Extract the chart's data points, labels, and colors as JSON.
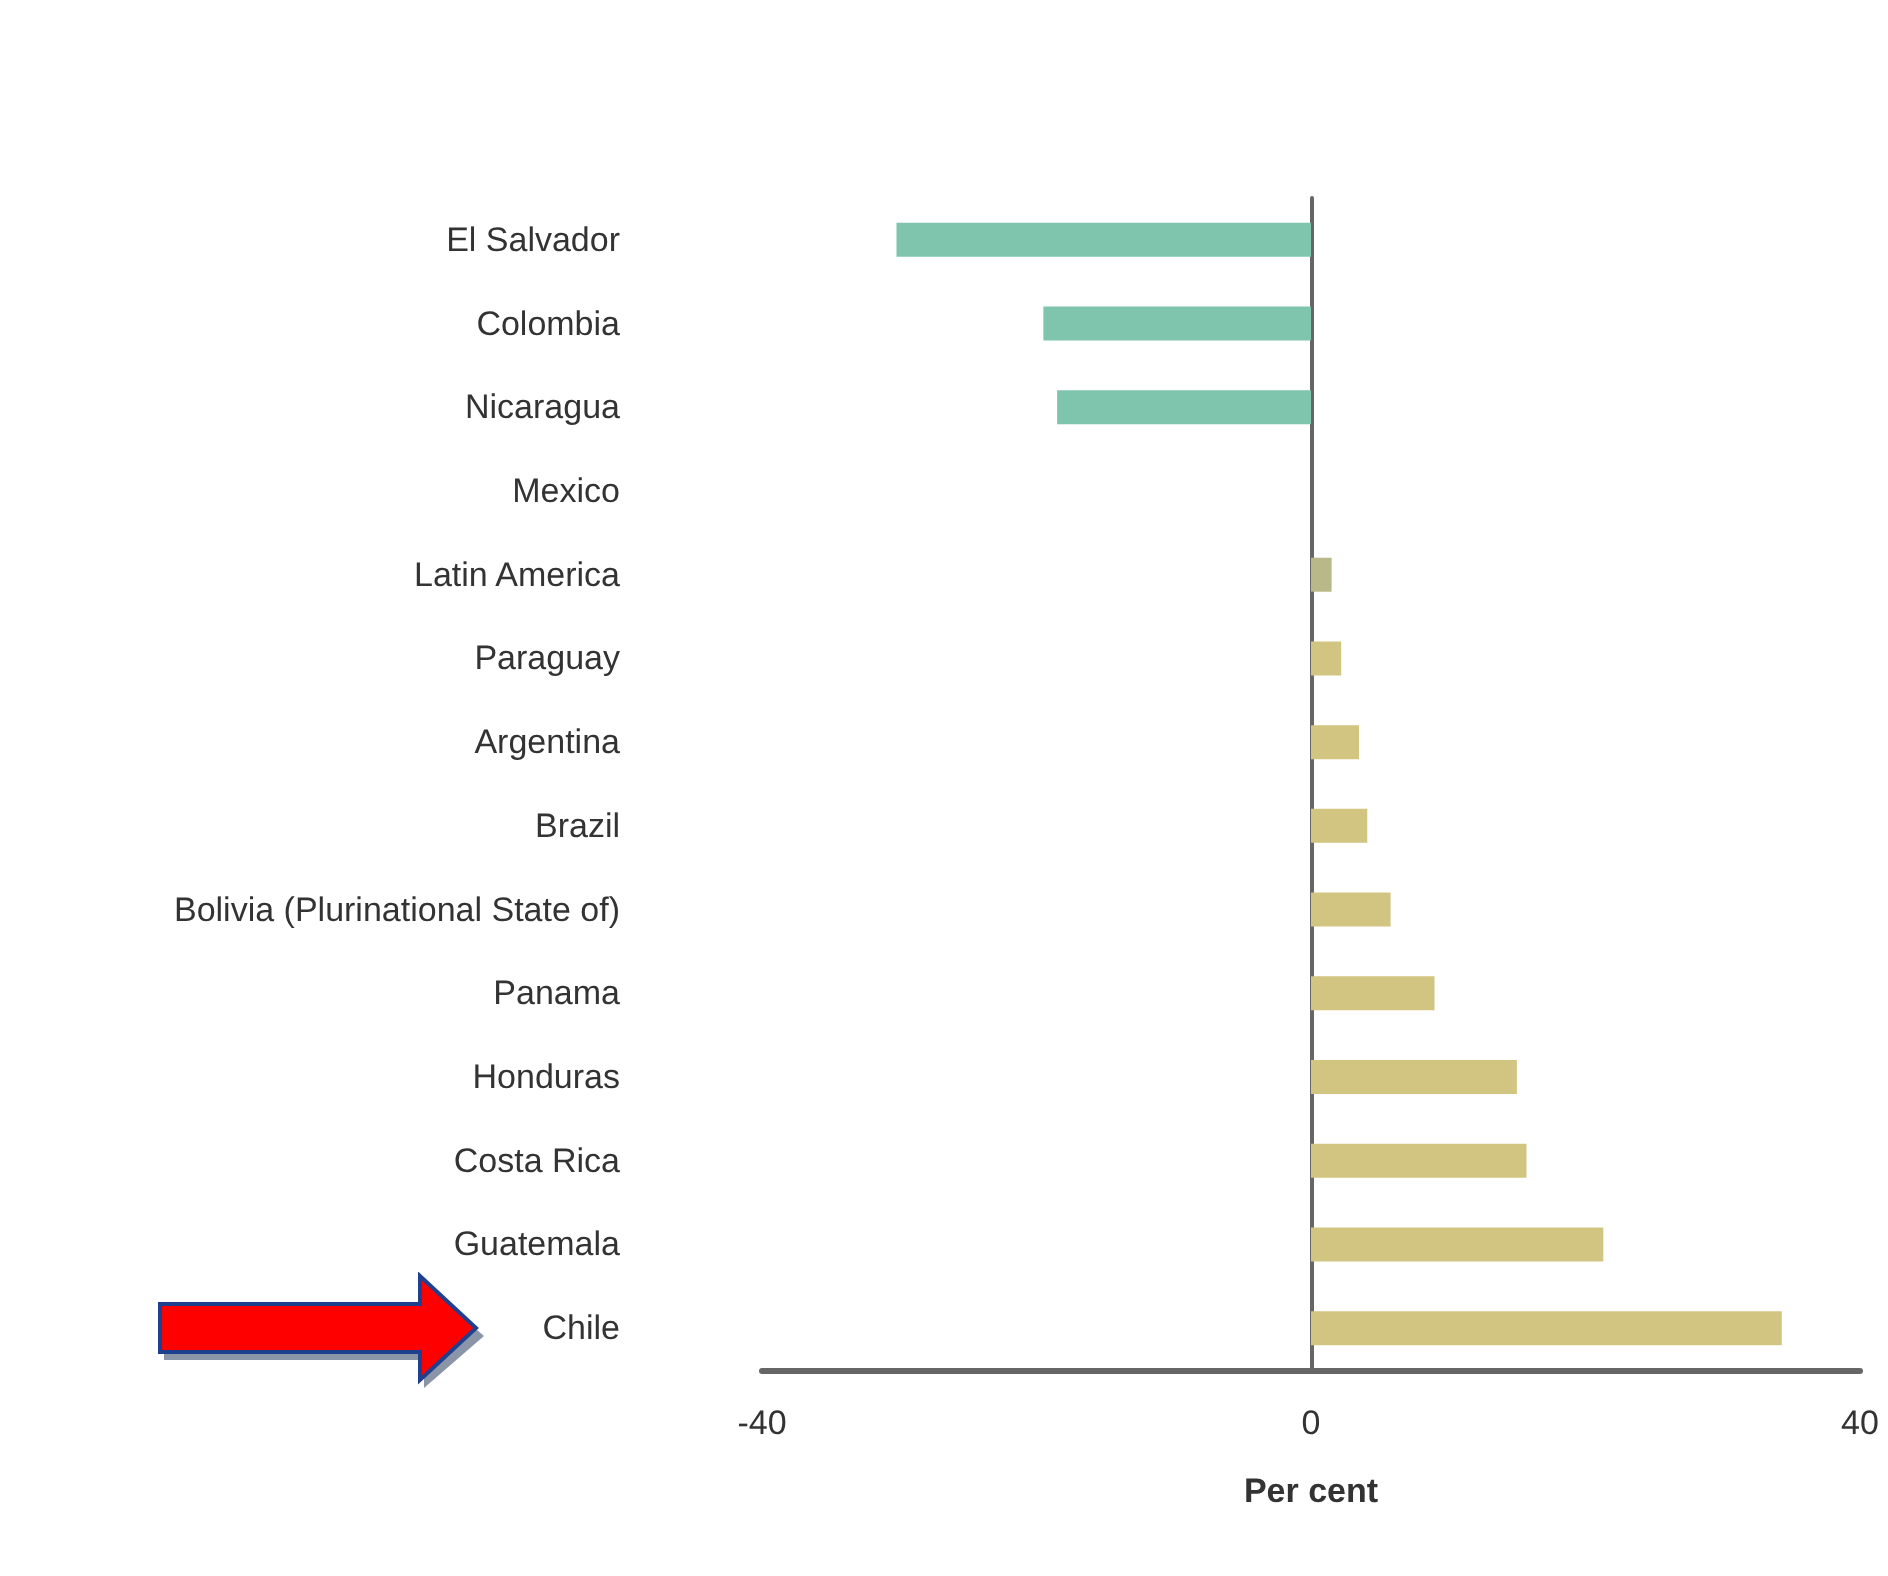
{
  "chart_data": {
    "type": "bar",
    "orientation": "horizontal",
    "categories": [
      "El Salvador",
      "Colombia",
      "Nicaragua",
      "Mexico",
      "Latin America",
      "Paraguay",
      "Argentina",
      "Brazil",
      "Bolivia (Plurinational State of)",
      "Panama",
      "Honduras",
      "Costa Rica",
      "Guatemala",
      "Chile"
    ],
    "values": [
      -30.2,
      -19.5,
      -18.5,
      0,
      1.5,
      2.2,
      3.5,
      4.1,
      5.8,
      9.0,
      15.0,
      15.7,
      21.3,
      34.3
    ],
    "colors": [
      "#7fc4ad",
      "#7fc4ad",
      "#7fc4ad",
      "#7fc4ad",
      "#b8b888",
      "#d1c581",
      "#d1c581",
      "#d1c581",
      "#d1c581",
      "#d1c581",
      "#d1c581",
      "#d1c581",
      "#d1c581",
      "#d1c581"
    ],
    "xlabel": "Per cent",
    "xlim": [
      -40,
      40
    ],
    "xticks": [
      -40,
      0,
      40
    ]
  }
}
